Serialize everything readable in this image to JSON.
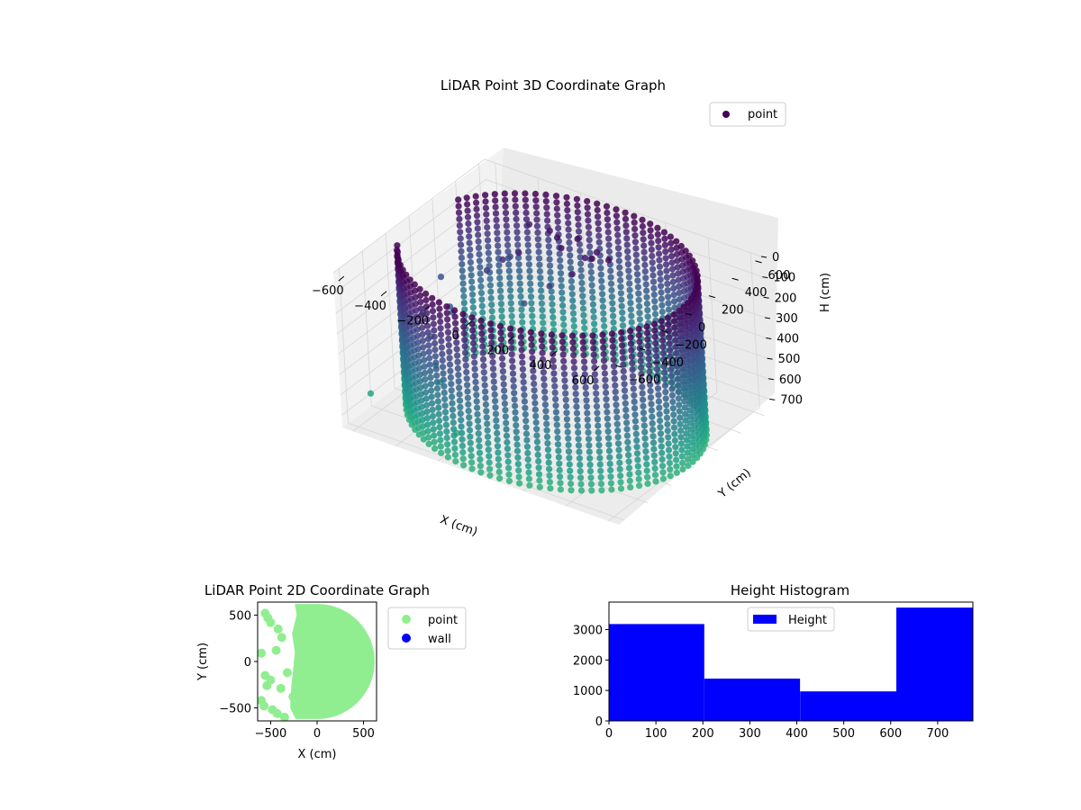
{
  "chart_data": [
    {
      "type": "scatter3d",
      "title": "LiDAR Point 3D Coordinate Graph",
      "xlabel": "X (cm)",
      "ylabel": "Y (cm)",
      "zlabel": "H (cm)",
      "xticks": [
        -600,
        -400,
        -200,
        0,
        200,
        400,
        600
      ],
      "yticks": [
        -600,
        -400,
        -200,
        0,
        200,
        400,
        600
      ],
      "zticks": [
        0,
        100,
        200,
        300,
        400,
        500,
        600,
        700
      ],
      "xlim": [
        -650,
        650
      ],
      "ylim": [
        -650,
        650
      ],
      "zlim": [
        0,
        760
      ],
      "z_inverted": true,
      "grid": true,
      "legend": {
        "entries": [
          "point"
        ],
        "location": "top-right"
      },
      "colormap": "viridis",
      "series": [
        {
          "name": "point",
          "wall": {
            "cx": 0,
            "cy": 0,
            "radius": 620,
            "arc_start_deg": -155,
            "arc_end_deg": 155,
            "h_min": 0,
            "h_max": 760
          },
          "extra_points": [
            [
              -120,
              300,
              40
            ],
            [
              -80,
              260,
              60
            ],
            [
              -40,
              330,
              30
            ],
            [
              20,
              280,
              80
            ],
            [
              60,
              310,
              50
            ],
            [
              -300,
              150,
              150
            ],
            [
              -250,
              200,
              120
            ],
            [
              -350,
              100,
              200
            ],
            [
              -450,
              -50,
              350
            ],
            [
              -480,
              20,
              420
            ],
            [
              -520,
              -100,
              500
            ],
            [
              -470,
              -160,
              600
            ],
            [
              -430,
              -200,
              650
            ],
            [
              -560,
              80,
              300
            ],
            [
              -600,
              -20,
              450
            ],
            [
              100,
              200,
              20
            ],
            [
              150,
              250,
              30
            ],
            [
              -200,
              380,
              70
            ],
            [
              -320,
              420,
              100
            ],
            [
              -380,
              350,
              250
            ],
            [
              -650,
              -400,
              700
            ],
            [
              -260,
              -380,
              760
            ],
            [
              -180,
              100,
              300
            ],
            [
              -100,
              180,
              220
            ],
            [
              30,
              150,
              100
            ]
          ]
        }
      ]
    },
    {
      "type": "scatter",
      "title": "LiDAR Point 2D Coordinate Graph",
      "xlabel": "X (cm)",
      "ylabel": "Y (cm)",
      "xticks": [
        -500,
        0,
        500
      ],
      "yticks": [
        -500,
        0,
        500
      ],
      "xlim": [
        -640,
        640
      ],
      "ylim": [
        -640,
        640
      ],
      "legend": {
        "entries": [
          "point",
          "wall"
        ],
        "location": "outside-right"
      },
      "colors": {
        "point": "#90ee90",
        "wall": "#0000ff"
      },
      "series": [
        {
          "name": "point",
          "region": {
            "radius": 620,
            "left_boundary_x_by_y": [
              [
                620,
                -240
              ],
              [
                500,
                -220
              ],
              [
                300,
                -270
              ],
              [
                100,
                -240
              ],
              [
                -100,
                -260
              ],
              [
                -300,
                -280
              ],
              [
                -500,
                -290
              ],
              [
                -620,
                -230
              ]
            ]
          },
          "points": [
            [
              -560,
              520
            ],
            [
              -530,
              470
            ],
            [
              -500,
              420
            ],
            [
              -420,
              350
            ],
            [
              -380,
              260
            ],
            [
              -440,
              120
            ],
            [
              -600,
              90
            ],
            [
              -560,
              -150
            ],
            [
              -500,
              -200
            ],
            [
              -390,
              -290
            ],
            [
              -540,
              -260
            ],
            [
              -320,
              -120
            ],
            [
              -260,
              -380
            ],
            [
              -480,
              -520
            ],
            [
              -430,
              -560
            ],
            [
              -350,
              -600
            ],
            [
              -570,
              -480
            ],
            [
              -600,
              -420
            ]
          ]
        },
        {
          "name": "wall",
          "points": []
        }
      ]
    },
    {
      "type": "bar",
      "title": "Height Histogram",
      "legend": {
        "entries": [
          "Height"
        ],
        "location": "upper-center"
      },
      "xticks": [
        0,
        100,
        200,
        300,
        400,
        500,
        600,
        700
      ],
      "yticks": [
        0,
        1000,
        2000,
        3000
      ],
      "xlim": [
        0,
        775
      ],
      "ylim": [
        0,
        3900
      ],
      "color": "#0000ff",
      "bins": [
        {
          "from": 0,
          "to": 203,
          "count": 3180
        },
        {
          "from": 203,
          "to": 407,
          "count": 1390
        },
        {
          "from": 407,
          "to": 612,
          "count": 970
        },
        {
          "from": 612,
          "to": 775,
          "count": 3720
        }
      ]
    }
  ]
}
